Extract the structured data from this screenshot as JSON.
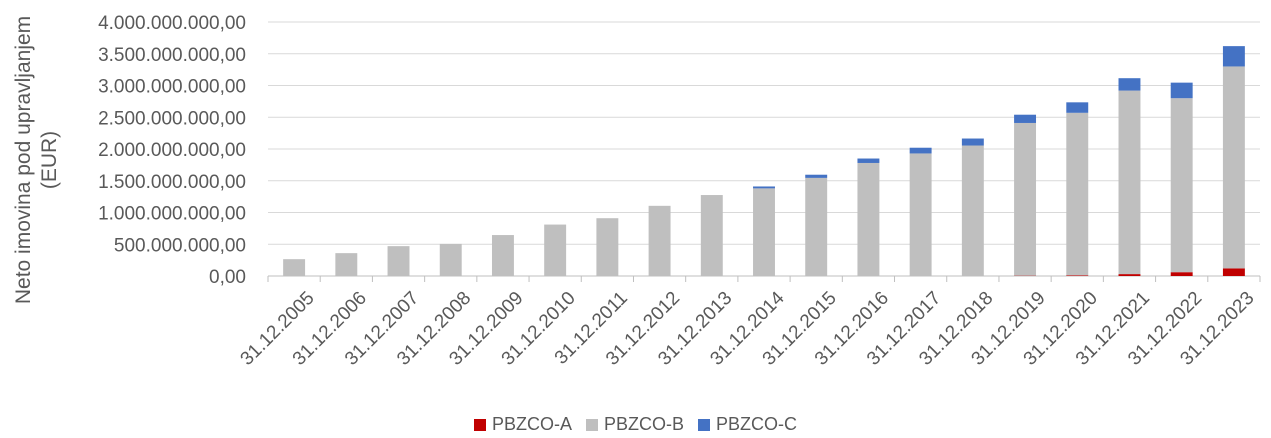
{
  "chart_data": {
    "type": "bar",
    "stacked": true,
    "categories": [
      "31.12.2005",
      "31.12.2006",
      "31.12.2007",
      "31.12.2008",
      "31.12.2009",
      "31.12.2010",
      "31.12.2011",
      "31.12.2012",
      "31.12.2013",
      "31.12.2014",
      "31.12.2015",
      "31.12.2016",
      "31.12.2017",
      "31.12.2018",
      "31.12.2019",
      "31.12.2020",
      "31.12.2021",
      "31.12.2022",
      "31.12.2023"
    ],
    "series": [
      {
        "name": "PBZCO-A",
        "color": "#c00000",
        "values": [
          0,
          0,
          0,
          0,
          0,
          0,
          0,
          0,
          0,
          0,
          0,
          0,
          0,
          0,
          5000000,
          10000000,
          30000000,
          60000000,
          120000000
        ]
      },
      {
        "name": "PBZCO-B",
        "color": "#bfbfbf",
        "values": [
          265000000,
          360000000,
          470000000,
          505000000,
          645000000,
          810000000,
          910000000,
          1105000000,
          1275000000,
          1380000000,
          1545000000,
          1780000000,
          1930000000,
          2055000000,
          2405000000,
          2560000000,
          2890000000,
          2740000000,
          3180000000
        ]
      },
      {
        "name": "PBZCO-C",
        "color": "#4472c4",
        "values": [
          0,
          0,
          0,
          0,
          0,
          0,
          0,
          0,
          0,
          30000000,
          50000000,
          70000000,
          90000000,
          110000000,
          130000000,
          165000000,
          195000000,
          245000000,
          320000000
        ]
      }
    ],
    "y_ticks": [
      "0,00",
      "500.000.000,00",
      "1.000.000.000,00",
      "1.500.000.000,00",
      "2.000.000.000,00",
      "2.500.000.000,00",
      "3.000.000.000,00",
      "3.500.000.000,00",
      "4.000.000.000,00"
    ],
    "ylim": [
      0,
      4000000000
    ],
    "ylabel_line1": "Neto imovina pod upravljanjem",
    "ylabel_line2": "(EUR)",
    "grid": true,
    "legend_position": "bottom"
  }
}
